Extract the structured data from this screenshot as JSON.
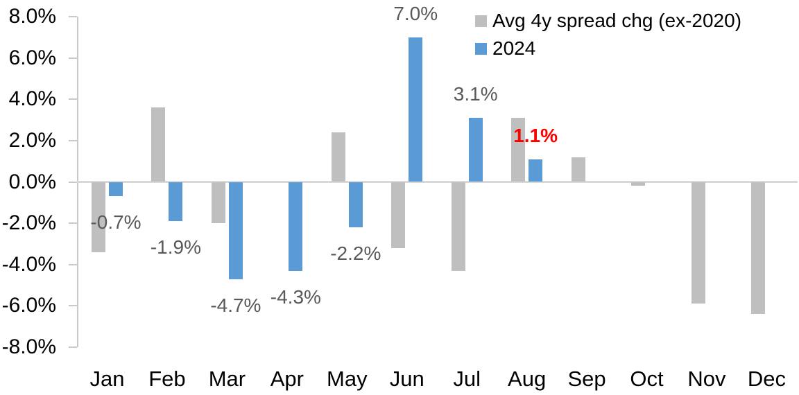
{
  "chart_data": {
    "type": "bar",
    "title": "",
    "categories": [
      "Jan",
      "Feb",
      "Mar",
      "Apr",
      "May",
      "Jun",
      "Jul",
      "Aug",
      "Sep",
      "Oct",
      "Nov",
      "Dec"
    ],
    "series": [
      {
        "name": "Avg 4y spread chg (ex-2020)",
        "color": "#bfbfbf",
        "values": [
          -3.4,
          3.6,
          -2.0,
          0.0,
          2.4,
          -3.2,
          -4.3,
          3.1,
          1.2,
          -0.2,
          -5.9,
          -6.4
        ]
      },
      {
        "name": "2024",
        "color": "#5b9bd5",
        "values": [
          -0.7,
          -1.9,
          -4.7,
          -4.3,
          -2.2,
          7.0,
          3.1,
          1.1,
          null,
          null,
          null,
          null
        ]
      }
    ],
    "data_labels": [
      {
        "category": "Jan",
        "text": "-0.7%",
        "highlight": false
      },
      {
        "category": "Feb",
        "text": "-1.9%",
        "highlight": false
      },
      {
        "category": "Mar",
        "text": "-4.7%",
        "highlight": false
      },
      {
        "category": "Apr",
        "text": "-4.3%",
        "highlight": false
      },
      {
        "category": "May",
        "text": "-2.2%",
        "highlight": false
      },
      {
        "category": "Jun",
        "text": "7.0%",
        "highlight": false
      },
      {
        "category": "Jul",
        "text": "3.1%",
        "highlight": false
      },
      {
        "category": "Aug",
        "text": "1.1%",
        "highlight": true
      }
    ],
    "y_ticks": [
      "8.0%",
      "6.0%",
      "4.0%",
      "2.0%",
      "0.0%",
      "-2.0%",
      "-4.0%",
      "-6.0%",
      "-8.0%"
    ],
    "ylim": [
      -8,
      8
    ],
    "y_tick_step": 2,
    "xlabel": "",
    "ylabel": "",
    "grid": "zero-line-only",
    "legend_position": "top-right",
    "colors": {
      "axis": "#c9c9c9",
      "zero_line": "#d9d9d9",
      "data_label": "#595959",
      "data_label_highlight": "#ff0000",
      "axis_text": "#000000"
    }
  }
}
